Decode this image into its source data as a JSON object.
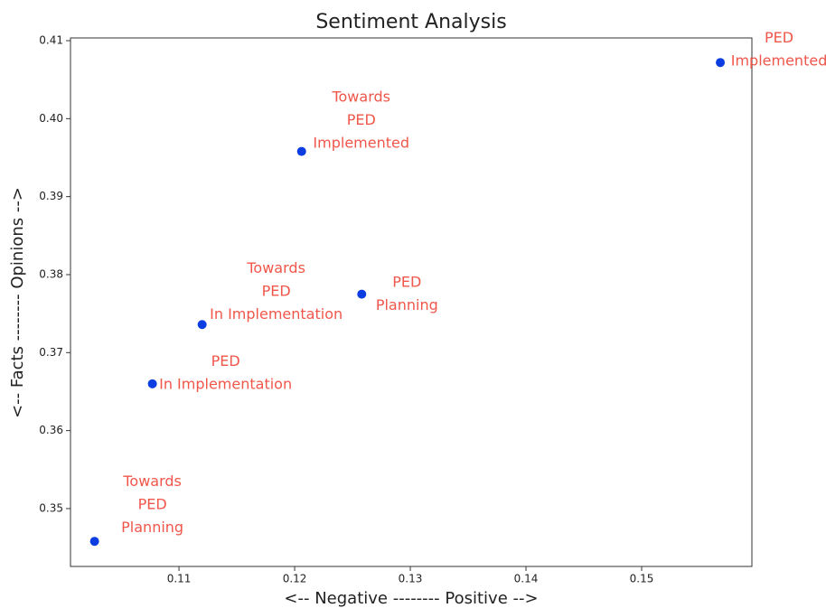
{
  "chart_data": {
    "type": "scatter",
    "title": "Sentiment Analysis",
    "x_label": "<-- Negative -------- Positive -->",
    "y_label": "<-- Facts -------- Opinions -->",
    "x": [
      0.1568,
      0.1206,
      0.1258,
      0.112,
      0.1077,
      0.1027
    ],
    "values": [
      0.4072,
      0.3958,
      0.3775,
      0.3736,
      0.366,
      0.3458
    ],
    "labels": [
      [
        "PED",
        "Implemented"
      ],
      [
        "Towards",
        "PED",
        "Implemented"
      ],
      [
        "PED",
        "Planning"
      ],
      [
        "Towards",
        "PED",
        "In Implementation"
      ],
      [
        "PED",
        "In Implementation"
      ],
      [
        "Towards",
        "PED",
        "Planning"
      ]
    ],
    "color": "#0b3de0",
    "label_color": "#f0564a",
    "xlim": [
      0.10062,
      0.15953
    ],
    "xticks": [
      0.11,
      0.12,
      0.13,
      0.14,
      0.15
    ],
    "ylim": [
      0.34258,
      0.41035
    ],
    "yticks": [
      0.35,
      0.36,
      0.37,
      0.38,
      0.39,
      {
        "value": 0.4,
        "label": "0.40"
      },
      0.41
    ],
    "grid": false
  }
}
